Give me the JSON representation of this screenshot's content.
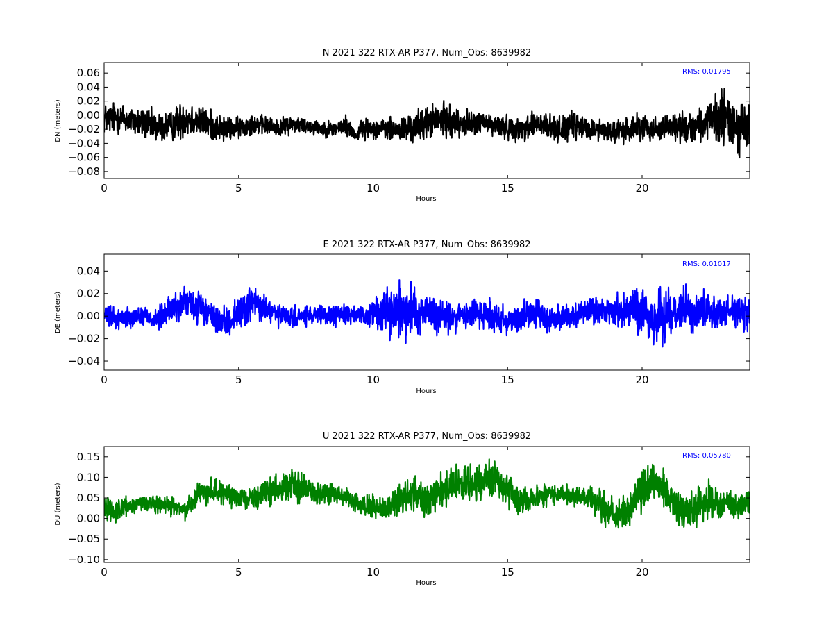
{
  "chart_data": [
    {
      "type": "line",
      "title": "N 2021 322 RTX-AR  P377, Num_Obs: 8639982",
      "xlabel": "Hours",
      "ylabel": "DN (meters)",
      "xlim": [
        0,
        24
      ],
      "ylim": [
        -0.09,
        0.075
      ],
      "xticks": [
        0,
        5,
        10,
        15,
        20
      ],
      "xtick_labels": [
        "0",
        "5",
        "10",
        "15",
        "20"
      ],
      "yticks": [
        -0.08,
        -0.06,
        -0.04,
        -0.02,
        0.0,
        0.02,
        0.04,
        0.06
      ],
      "ytick_labels": [
        "−0.08",
        "−0.06",
        "−0.04",
        "−0.02",
        "0.00",
        "0.02",
        "0.04",
        "0.06"
      ],
      "color": "#000000",
      "annotation": "RMS:  0.01795",
      "annotation_color": "#0000ff",
      "series": [
        {
          "x": [
            0,
            0.5,
            1,
            1.5,
            2,
            2.5,
            3,
            3.5,
            4,
            4.5,
            5,
            5.5,
            6,
            6.5,
            7,
            7.5,
            8,
            8.5,
            9,
            9.4,
            9.5,
            10,
            10.5,
            11,
            11.5,
            12,
            12.5,
            13,
            13.5,
            14,
            14.5,
            15,
            15.5,
            16,
            16.5,
            17,
            17.5,
            18,
            18.5,
            19,
            19.5,
            20,
            20.5,
            21,
            21.5,
            22,
            22.5,
            23,
            23.5,
            24
          ],
          "center": [
            -0.005,
            -0.003,
            -0.008,
            -0.012,
            -0.018,
            -0.015,
            -0.004,
            -0.008,
            -0.015,
            -0.02,
            -0.018,
            -0.012,
            -0.015,
            -0.018,
            -0.012,
            -0.015,
            -0.018,
            -0.02,
            -0.015,
            -0.03,
            -0.02,
            -0.018,
            -0.02,
            -0.022,
            -0.018,
            -0.01,
            -0.006,
            -0.01,
            -0.012,
            -0.01,
            -0.015,
            -0.018,
            -0.02,
            -0.012,
            -0.018,
            -0.02,
            -0.015,
            -0.02,
            -0.02,
            -0.025,
            -0.02,
            -0.015,
            -0.02,
            -0.015,
            -0.018,
            -0.015,
            -0.01,
            -0.005,
            -0.015,
            -0.02
          ],
          "amplitude": [
            0.03,
            0.03,
            0.028,
            0.03,
            0.03,
            0.028,
            0.038,
            0.03,
            0.028,
            0.024,
            0.02,
            0.02,
            0.018,
            0.016,
            0.018,
            0.016,
            0.015,
            0.015,
            0.02,
            0.01,
            0.018,
            0.018,
            0.022,
            0.025,
            0.028,
            0.032,
            0.032,
            0.028,
            0.024,
            0.022,
            0.022,
            0.022,
            0.022,
            0.03,
            0.026,
            0.024,
            0.028,
            0.022,
            0.02,
            0.022,
            0.025,
            0.025,
            0.022,
            0.025,
            0.03,
            0.028,
            0.035,
            0.06,
            0.05,
            0.055
          ]
        }
      ]
    },
    {
      "type": "line",
      "title": "E 2021 322 RTX-AR  P377, Num_Obs: 8639982",
      "xlabel": "Hours",
      "ylabel": "DE (meters)",
      "xlim": [
        0,
        24
      ],
      "ylim": [
        -0.048,
        0.055
      ],
      "xticks": [
        0,
        5,
        10,
        15,
        20
      ],
      "xtick_labels": [
        "0",
        "5",
        "10",
        "15",
        "20"
      ],
      "yticks": [
        -0.04,
        -0.02,
        0.0,
        0.02,
        0.04
      ],
      "ytick_labels": [
        "−0.04",
        "−0.02",
        "0.00",
        "0.02",
        "0.04"
      ],
      "color": "#0000ff",
      "annotation": "RMS:  0.01017",
      "annotation_color": "#0000ff",
      "series": [
        {
          "x": [
            0,
            0.5,
            1,
            1.5,
            2,
            2.5,
            3,
            3.5,
            4,
            4.5,
            5,
            5.5,
            6,
            6.5,
            7,
            7.5,
            8,
            8.5,
            9,
            9.5,
            10,
            10.5,
            11,
            11.5,
            12,
            12.5,
            13,
            13.5,
            14,
            14.5,
            15,
            15.5,
            16,
            16.5,
            17,
            17.5,
            18,
            18.5,
            19,
            19.5,
            20,
            20.5,
            21,
            21.5,
            22,
            22.5,
            23,
            23.5,
            24
          ],
          "center": [
            0.0,
            -0.002,
            0.0,
            0.0,
            -0.003,
            0.006,
            0.012,
            0.008,
            0.0,
            -0.008,
            0.003,
            0.012,
            0.006,
            0.0,
            -0.002,
            0.0,
            0.0,
            0.0,
            0.003,
            0.0,
            0.002,
            0.005,
            0.004,
            0.006,
            0.003,
            0.0,
            -0.002,
            0.002,
            0.003,
            0.0,
            -0.004,
            0.0,
            0.002,
            -0.003,
            0.0,
            0.0,
            0.003,
            0.005,
            0.004,
            0.006,
            0.004,
            -0.005,
            0.004,
            0.008,
            0.003,
            0.005,
            0.004,
            0.005,
            -0.002
          ],
          "amplitude": [
            0.012,
            0.013,
            0.012,
            0.012,
            0.014,
            0.018,
            0.02,
            0.02,
            0.015,
            0.018,
            0.02,
            0.022,
            0.018,
            0.014,
            0.012,
            0.012,
            0.012,
            0.012,
            0.014,
            0.008,
            0.018,
            0.028,
            0.032,
            0.028,
            0.025,
            0.022,
            0.018,
            0.018,
            0.022,
            0.02,
            0.02,
            0.02,
            0.018,
            0.018,
            0.016,
            0.014,
            0.016,
            0.018,
            0.02,
            0.024,
            0.028,
            0.032,
            0.03,
            0.026,
            0.022,
            0.02,
            0.018,
            0.022,
            0.02
          ]
        }
      ]
    },
    {
      "type": "line",
      "title": "U 2021 322 RTX-AR  P377, Num_Obs: 8639982",
      "xlabel": "Hours",
      "ylabel": "DU (meters)",
      "xlim": [
        0,
        24
      ],
      "ylim": [
        -0.107,
        0.175
      ],
      "xticks": [
        0,
        5,
        10,
        15,
        20
      ],
      "xtick_labels": [
        "0",
        "5",
        "10",
        "15",
        "20"
      ],
      "yticks": [
        -0.1,
        -0.05,
        0.0,
        0.05,
        0.1,
        0.15
      ],
      "ytick_labels": [
        "−0.10",
        "−0.05",
        "0.00",
        "0.05",
        "0.10",
        "0.15"
      ],
      "color": "#008000",
      "annotation": "RMS:  0.05780",
      "annotation_color": "#0000ff",
      "series": [
        {
          "x": [
            0,
            0.5,
            1,
            1.5,
            2,
            2.5,
            3,
            3.5,
            4,
            4.5,
            5,
            5.5,
            6,
            6.5,
            7,
            7.5,
            8,
            8.5,
            9,
            9.5,
            10,
            10.5,
            11,
            11.5,
            12,
            12.5,
            13,
            13.5,
            14,
            14.5,
            15,
            15.5,
            16,
            16.5,
            17,
            17.5,
            18,
            18.5,
            19,
            19.5,
            20,
            20.5,
            21,
            21.5,
            22,
            22.5,
            23,
            23.5,
            24
          ],
          "center": [
            0.03,
            0.02,
            0.03,
            0.04,
            0.03,
            0.03,
            0.02,
            0.06,
            0.07,
            0.06,
            0.05,
            0.05,
            0.06,
            0.08,
            0.08,
            0.07,
            0.06,
            0.06,
            0.05,
            0.03,
            0.03,
            0.02,
            0.05,
            0.06,
            0.05,
            0.07,
            0.08,
            0.08,
            0.09,
            0.1,
            0.07,
            0.04,
            0.05,
            0.06,
            0.06,
            0.05,
            0.05,
            0.03,
            0.0,
            0.02,
            0.07,
            0.09,
            0.06,
            0.02,
            0.02,
            0.04,
            0.03,
            0.03,
            0.04
          ],
          "amplitude": [
            0.04,
            0.035,
            0.03,
            0.03,
            0.03,
            0.028,
            0.03,
            0.04,
            0.04,
            0.035,
            0.03,
            0.035,
            0.04,
            0.05,
            0.06,
            0.045,
            0.035,
            0.03,
            0.03,
            0.03,
            0.035,
            0.04,
            0.05,
            0.055,
            0.055,
            0.06,
            0.06,
            0.055,
            0.06,
            0.06,
            0.055,
            0.04,
            0.035,
            0.035,
            0.03,
            0.03,
            0.035,
            0.06,
            0.06,
            0.06,
            0.065,
            0.06,
            0.05,
            0.06,
            0.06,
            0.06,
            0.065,
            0.045,
            0.04
          ]
        }
      ]
    }
  ]
}
